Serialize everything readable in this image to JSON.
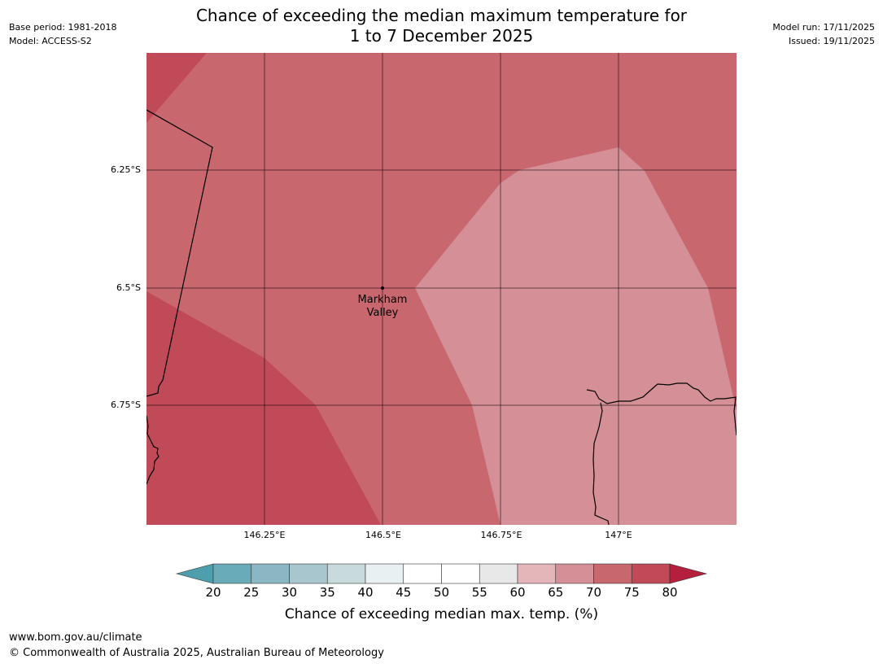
{
  "header": {
    "title_line1": "Chance of exceeding the median maximum temperature for",
    "title_line2": "1 to 7 December 2025",
    "base_period": "Base period: 1981-2018",
    "model": "Model: ACCESS-S2",
    "model_run": "Model run: 17/11/2025",
    "issued": "Issued: 19/11/2025"
  },
  "map": {
    "place_label_line1": "Markham",
    "place_label_line2": "Valley",
    "lat_labels": [
      "6.25°S",
      "6.5°S",
      "6.75°S"
    ],
    "lon_labels": [
      "146.25°E",
      "146.5°E",
      "146.75°E",
      "147°E"
    ],
    "fill_colors": {
      "c70_75": "#c9676f",
      "c75_80": "#c04a57",
      "c65_70": "#d58f96"
    }
  },
  "colorbar": {
    "ticks": [
      "20",
      "25",
      "30",
      "35",
      "40",
      "45",
      "50",
      "55",
      "60",
      "65",
      "70",
      "75",
      "80"
    ],
    "colors": [
      "#4e9fad",
      "#6aabba",
      "#8bb7c4",
      "#a8c6cd",
      "#c9dadd",
      "#e8f0f2",
      "#ffffff",
      "#ffffff",
      "#e8e8e8",
      "#e4b6b9",
      "#d58f96",
      "#c9676f",
      "#c04a57",
      "#b31f3c"
    ],
    "label": "Chance of exceeding median max. temp. (%)"
  },
  "footer": {
    "url": "www.bom.gov.au/climate",
    "copyright": "© Commonwealth of Australia 2025, Australian Bureau of Meteorology"
  }
}
